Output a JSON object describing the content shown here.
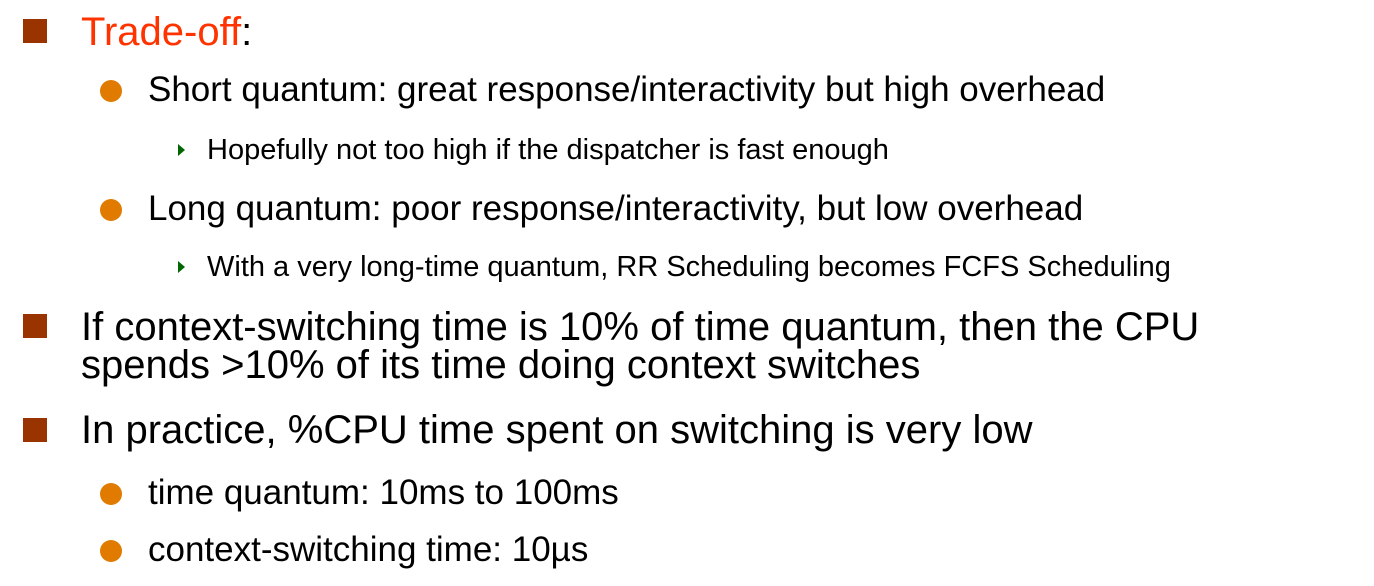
{
  "colors": {
    "level1_bullet": "#993300",
    "level2_bullet": "#e07b00",
    "level3_bullet": "#006600",
    "highlight": "#ff3300"
  },
  "bullets": {
    "b1": {
      "label": "Trade-off",
      "suffix": ":"
    },
    "b1_1": "Short quantum: great response/interactivity but high overhead",
    "b1_1_1": "Hopefully not too high if the dispatcher is fast enough",
    "b1_2": "Long quantum: poor response/interactivity, but low overhead",
    "b1_2_1": "With a very long-time quantum, RR Scheduling becomes FCFS Scheduling",
    "b2": {
      "line1": "If context-switching time is 10% of time quantum, then the CPU",
      "line2": "spends >10% of its time doing context switches"
    },
    "b3": "In practice, %CPU time spent on switching is very low",
    "b3_1": "time quantum: 10ms to 100ms",
    "b3_2": "context-switching time: 10µs"
  }
}
